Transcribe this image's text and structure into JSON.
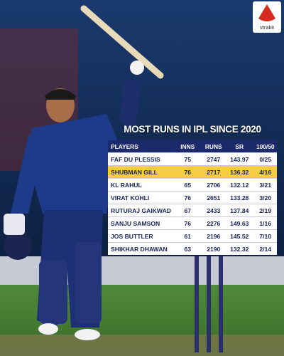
{
  "header": {
    "title": "MOST RUNS IN IPL SINCE 2020"
  },
  "logo": {
    "text": "vtrakit"
  },
  "table": {
    "columns": [
      "PLAYERS",
      "INNS",
      "RUNS",
      "SR",
      "100/50"
    ],
    "rows": [
      [
        "FAF DU PLESSIS",
        "75",
        "2747",
        "143.97",
        "0/25"
      ],
      [
        "SHUBMAN GILL",
        "76",
        "2717",
        "136.32",
        "4/16"
      ],
      [
        "KL RAHUL",
        "65",
        "2706",
        "132.12",
        "3/21"
      ],
      [
        "VIRAT KOHLI",
        "76",
        "2651",
        "133.28",
        "3/20"
      ],
      [
        "RUTURAJ GAIKWAD",
        "67",
        "2433",
        "137.84",
        "2/19"
      ],
      [
        "SANJU SAMSON",
        "76",
        "2276",
        "149.63",
        "1/16"
      ],
      [
        "JOS BUTTLER",
        "61",
        "2196",
        "145.52",
        "7/10"
      ],
      [
        "SHIKHAR DHAWAN",
        "63",
        "2190",
        "132.32",
        "2/14"
      ]
    ]
  }
}
